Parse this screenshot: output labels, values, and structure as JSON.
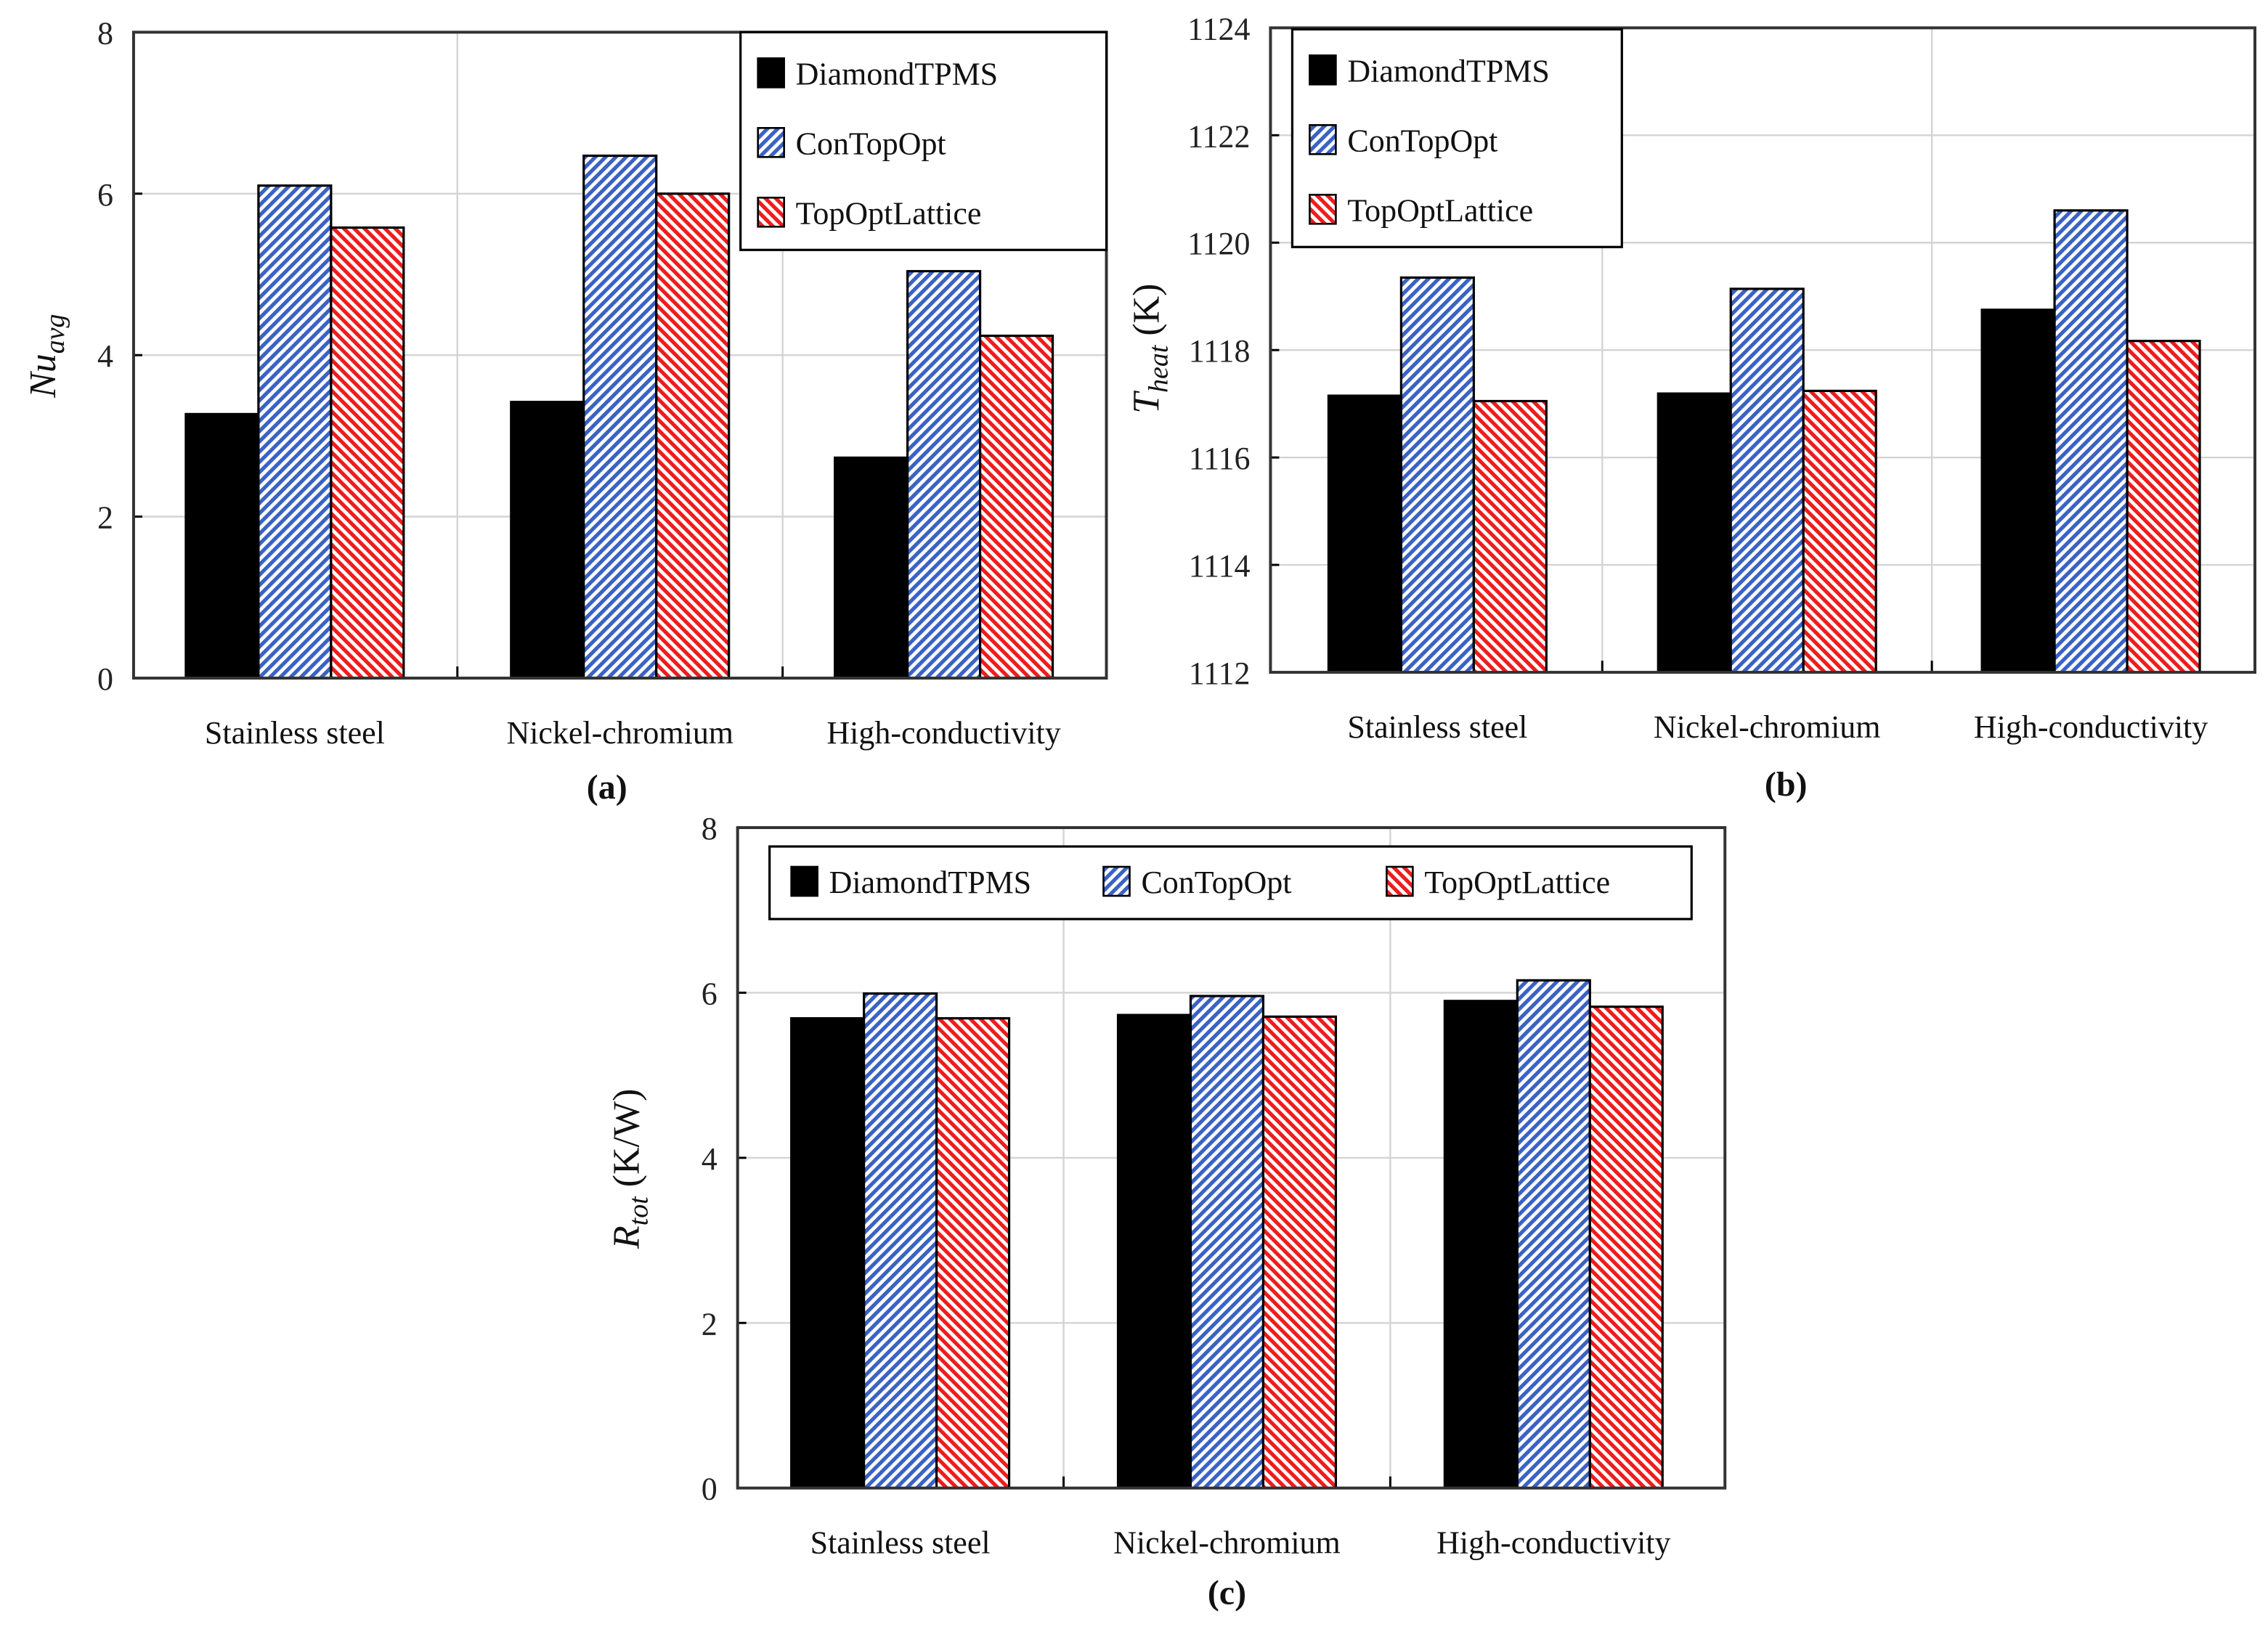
{
  "chart_data": [
    {
      "type": "bar",
      "panel": "(a)",
      "ylabel": "Nu",
      "ylabel_sub": "avg",
      "ylabel_unit": "",
      "ylim": [
        0,
        8
      ],
      "yticks": [
        0,
        2,
        4,
        6,
        8
      ],
      "categories": [
        "Stainless steel",
        "Nickel-chromium",
        "High-conductivity"
      ],
      "legend_position": "top-right",
      "series": [
        {
          "name": "DiamondTPMS",
          "values": [
            3.27,
            3.42,
            2.73
          ]
        },
        {
          "name": "ConTopOpt",
          "values": [
            6.1,
            6.47,
            5.04
          ]
        },
        {
          "name": "TopOptLattice",
          "values": [
            5.58,
            6.0,
            4.24
          ]
        }
      ],
      "grid": true
    },
    {
      "type": "bar",
      "panel": "(b)",
      "ylabel": "T",
      "ylabel_sub": "heat",
      "ylabel_unit": " (K)",
      "ylim": [
        1112,
        1124
      ],
      "yticks": [
        1112,
        1114,
        1116,
        1118,
        1120,
        1122,
        1124
      ],
      "categories": [
        "Stainless steel",
        "Nickel-chromium",
        "High-conductivity"
      ],
      "legend_position": "top-left",
      "series": [
        {
          "name": "DiamondTPMS",
          "values": [
            1117.15,
            1117.19,
            1118.75
          ]
        },
        {
          "name": "ConTopOpt",
          "values": [
            1119.35,
            1119.14,
            1120.6
          ]
        },
        {
          "name": "TopOptLattice",
          "values": [
            1117.05,
            1117.24,
            1118.17
          ]
        }
      ],
      "grid": true
    },
    {
      "type": "bar",
      "panel": "(c)",
      "ylabel": "R",
      "ylabel_sub": "tot",
      "ylabel_unit": " (K/W)",
      "ylim": [
        0,
        8
      ],
      "yticks": [
        0,
        2,
        4,
        6,
        8
      ],
      "categories": [
        "Stainless steel",
        "Nickel-chromium",
        "High-conductivity"
      ],
      "legend_position": "top",
      "series": [
        {
          "name": "DiamondTPMS",
          "values": [
            5.69,
            5.73,
            5.9
          ]
        },
        {
          "name": "ConTopOpt",
          "values": [
            5.99,
            5.96,
            6.15
          ]
        },
        {
          "name": "TopOptLattice",
          "values": [
            5.69,
            5.71,
            5.83
          ]
        }
      ],
      "grid": true
    }
  ],
  "colors": {
    "DiamondTPMS": "#000000",
    "ConTopOpt": "#3a62c4",
    "TopOptLattice": "#ee1c1c"
  }
}
